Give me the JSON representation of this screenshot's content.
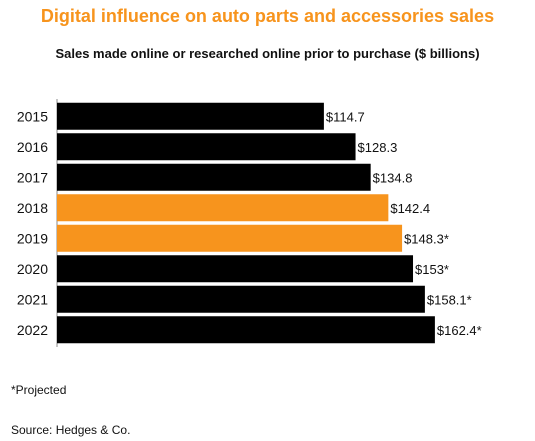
{
  "chart_data": {
    "type": "bar",
    "orientation": "horizontal",
    "title": "Digital influence on auto parts and accessories sales",
    "subtitle": "Sales made online or researched online prior to purchase ($ billions)",
    "categories": [
      "2015",
      "2016",
      "2017",
      "2018",
      "2019",
      "2020",
      "2021",
      "2022"
    ],
    "values": [
      114.7,
      128.3,
      134.8,
      142.4,
      148.3,
      153,
      158.1,
      162.4
    ],
    "data_labels": [
      "$114.7",
      "$128.3",
      "$134.8",
      "$142.4",
      "$148.3*",
      "$153*",
      "$158.1*",
      "$162.4*"
    ],
    "bar_colors": [
      "#000000",
      "#000000",
      "#000000",
      "#F7941D",
      "#F7941D",
      "#000000",
      "#000000",
      "#000000"
    ],
    "xlim": [
      0,
      208
    ],
    "grid": false,
    "legend": "none"
  },
  "footnote": "*Projected",
  "source": "Source: Hedges & Co.",
  "colors": {
    "accent": "#F7941D",
    "bar": "#000000"
  }
}
